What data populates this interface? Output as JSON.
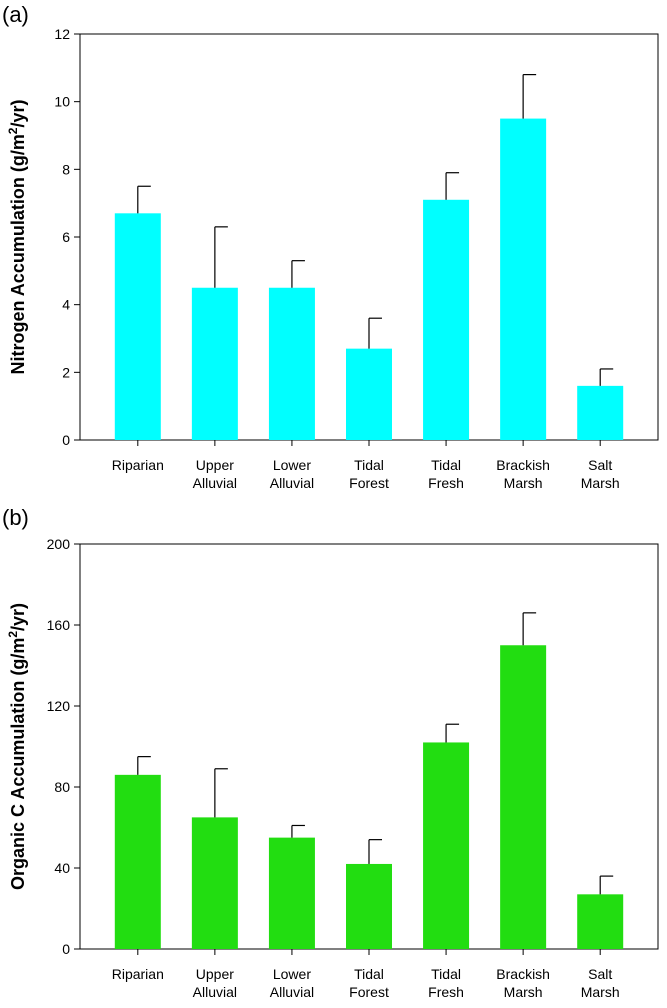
{
  "chart_data": [
    {
      "type": "bar",
      "panel_label": "(a)",
      "categories": [
        [
          "Riparian"
        ],
        [
          "Upper",
          "Alluvial"
        ],
        [
          "Lower",
          "Alluvial"
        ],
        [
          "Tidal",
          "Forest"
        ],
        [
          "Tidal",
          "Fresh"
        ],
        [
          "Brackish",
          "Marsh"
        ],
        [
          "Salt",
          "Marsh"
        ]
      ],
      "values": [
        6.7,
        4.5,
        4.5,
        2.7,
        7.1,
        9.5,
        1.6
      ],
      "errors": [
        0.8,
        1.8,
        0.8,
        0.9,
        0.8,
        1.3,
        0.5
      ],
      "ylabel_main": "Nitrogen Accumulation (g/m",
      "ylabel_sup": "2",
      "ylabel_tail": "/yr)",
      "ylim": [
        0,
        12
      ],
      "yticks": [
        0,
        2,
        4,
        6,
        8,
        10,
        12
      ],
      "bar_color": "#00ffff",
      "grid": false
    },
    {
      "type": "bar",
      "panel_label": "(b)",
      "categories": [
        [
          "Riparian"
        ],
        [
          "Upper",
          "Alluvial"
        ],
        [
          "Lower",
          "Alluvial"
        ],
        [
          "Tidal",
          "Forest"
        ],
        [
          "Tidal",
          "Fresh"
        ],
        [
          "Brackish",
          "Marsh"
        ],
        [
          "Salt",
          "Marsh"
        ]
      ],
      "values": [
        86,
        65,
        55,
        42,
        102,
        150,
        27
      ],
      "errors": [
        9,
        24,
        6,
        12,
        9,
        16,
        9
      ],
      "ylabel_main": "Organic C Accumulation (g/m",
      "ylabel_sup": "2",
      "ylabel_tail": "/yr)",
      "ylim": [
        0,
        200
      ],
      "yticks": [
        0,
        40,
        80,
        120,
        160,
        200
      ],
      "bar_color": "#22dd11",
      "grid": false
    }
  ]
}
